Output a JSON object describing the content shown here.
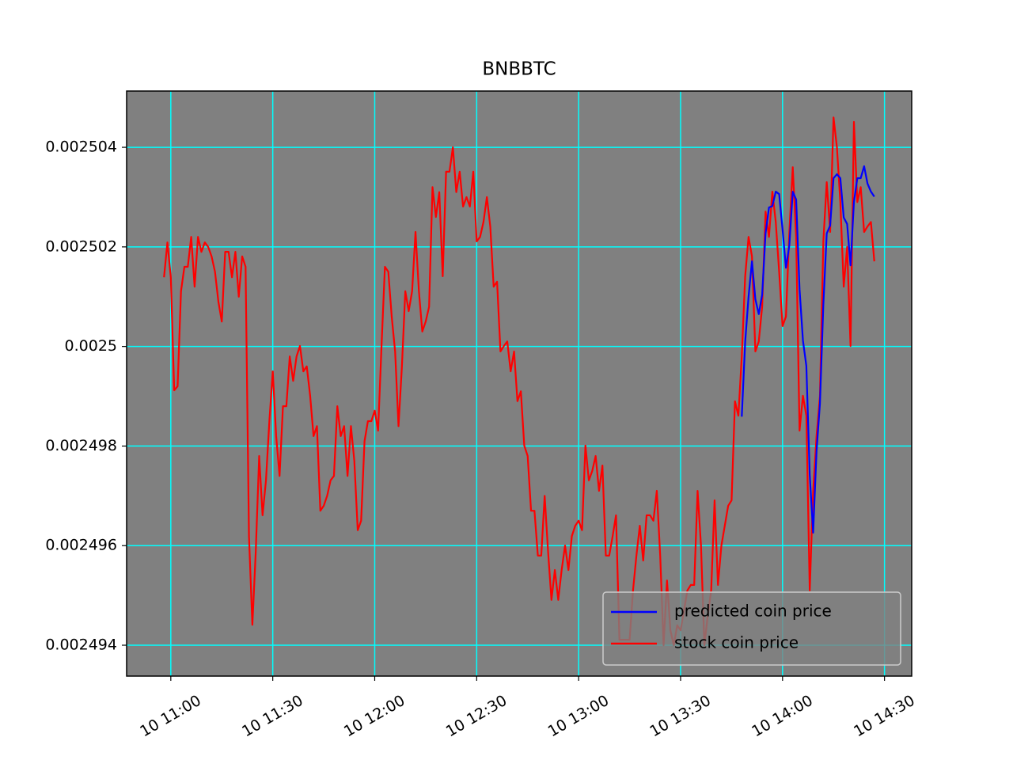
{
  "chart_data": {
    "type": "line",
    "title": "BNBBTC",
    "x": [
      "10 10:58",
      "10 10:59",
      "10 11:00",
      "10 11:01",
      "10 11:02",
      "10 11:03",
      "10 11:04",
      "10 11:05",
      "10 11:06",
      "10 11:07",
      "10 11:08",
      "10 11:09",
      "10 11:10",
      "10 11:11",
      "10 11:12",
      "10 11:13",
      "10 11:14",
      "10 11:15",
      "10 11:16",
      "10 11:17",
      "10 11:18",
      "10 11:19",
      "10 11:20",
      "10 11:21",
      "10 11:22",
      "10 11:23",
      "10 11:24",
      "10 11:25",
      "10 11:26",
      "10 11:27",
      "10 11:28",
      "10 11:29",
      "10 11:30",
      "10 11:31",
      "10 11:32",
      "10 11:33",
      "10 11:34",
      "10 11:35",
      "10 11:36",
      "10 11:37",
      "10 11:38",
      "10 11:39",
      "10 11:40",
      "10 11:41",
      "10 11:42",
      "10 11:43",
      "10 11:44",
      "10 11:45",
      "10 11:46",
      "10 11:47",
      "10 11:48",
      "10 11:49",
      "10 11:50",
      "10 11:51",
      "10 11:52",
      "10 11:53",
      "10 11:54",
      "10 11:55",
      "10 11:56",
      "10 11:57",
      "10 11:58",
      "10 11:59",
      "10 12:00",
      "10 12:01",
      "10 12:02",
      "10 12:03",
      "10 12:04",
      "10 12:05",
      "10 12:06",
      "10 12:07",
      "10 12:08",
      "10 12:09",
      "10 12:10",
      "10 12:11",
      "10 12:12",
      "10 12:13",
      "10 12:14",
      "10 12:15",
      "10 12:16",
      "10 12:17",
      "10 12:18",
      "10 12:19",
      "10 12:20",
      "10 12:21",
      "10 12:22",
      "10 12:23",
      "10 12:24",
      "10 12:25",
      "10 12:26",
      "10 12:27",
      "10 12:28",
      "10 12:29",
      "10 12:30",
      "10 12:31",
      "10 12:32",
      "10 12:33",
      "10 12:34",
      "10 12:35",
      "10 12:36",
      "10 12:37",
      "10 12:38",
      "10 12:39",
      "10 12:40",
      "10 12:41",
      "10 12:42",
      "10 12:43",
      "10 12:44",
      "10 12:45",
      "10 12:46",
      "10 12:47",
      "10 12:48",
      "10 12:49",
      "10 12:50",
      "10 12:51",
      "10 12:52",
      "10 12:53",
      "10 12:54",
      "10 12:55",
      "10 12:56",
      "10 12:57",
      "10 12:58",
      "10 12:59",
      "10 13:00",
      "10 13:01",
      "10 13:02",
      "10 13:03",
      "10 13:04",
      "10 13:05",
      "10 13:06",
      "10 13:07",
      "10 13:08",
      "10 13:09",
      "10 13:10",
      "10 13:11",
      "10 13:12",
      "10 13:13",
      "10 13:14",
      "10 13:15",
      "10 13:16",
      "10 13:17",
      "10 13:18",
      "10 13:19",
      "10 13:20",
      "10 13:21",
      "10 13:22",
      "10 13:23",
      "10 13:24",
      "10 13:25",
      "10 13:26",
      "10 13:27",
      "10 13:28",
      "10 13:29",
      "10 13:30",
      "10 13:31",
      "10 13:32",
      "10 13:33",
      "10 13:34",
      "10 13:35",
      "10 13:36",
      "10 13:37",
      "10 13:38",
      "10 13:39",
      "10 13:40",
      "10 13:41",
      "10 13:42",
      "10 13:43",
      "10 13:44",
      "10 13:45",
      "10 13:46",
      "10 13:47",
      "10 13:48",
      "10 13:49",
      "10 13:50",
      "10 13:51",
      "10 13:52",
      "10 13:53",
      "10 13:54",
      "10 13:55",
      "10 13:56",
      "10 13:57",
      "10 13:58",
      "10 13:59",
      "10 14:00",
      "10 14:01",
      "10 14:02",
      "10 14:03",
      "10 14:04",
      "10 14:05",
      "10 14:06",
      "10 14:07",
      "10 14:08",
      "10 14:09",
      "10 14:10",
      "10 14:11",
      "10 14:12",
      "10 14:13",
      "10 14:14",
      "10 14:15",
      "10 14:16",
      "10 14:17",
      "10 14:18",
      "10 14:19",
      "10 14:20",
      "10 14:21",
      "10 14:22",
      "10 14:23",
      "10 14:24",
      "10 14:25",
      "10 14:26",
      "10 14:27"
    ],
    "series": [
      {
        "name": "predicted coin price",
        "color": "#0000ff",
        "values": [
          null,
          null,
          null,
          null,
          null,
          null,
          null,
          null,
          null,
          null,
          null,
          null,
          null,
          null,
          null,
          null,
          null,
          null,
          null,
          null,
          null,
          null,
          null,
          null,
          null,
          null,
          null,
          null,
          null,
          null,
          null,
          null,
          null,
          null,
          null,
          null,
          null,
          null,
          null,
          null,
          null,
          null,
          null,
          null,
          null,
          null,
          null,
          null,
          null,
          null,
          null,
          null,
          null,
          null,
          null,
          null,
          null,
          null,
          null,
          null,
          null,
          null,
          null,
          null,
          null,
          null,
          null,
          null,
          null,
          null,
          null,
          null,
          null,
          null,
          null,
          null,
          null,
          null,
          null,
          null,
          null,
          null,
          null,
          null,
          null,
          null,
          null,
          null,
          null,
          null,
          null,
          null,
          null,
          null,
          null,
          null,
          null,
          null,
          null,
          null,
          null,
          null,
          null,
          null,
          null,
          null,
          null,
          null,
          null,
          null,
          null,
          null,
          null,
          null,
          null,
          null,
          null,
          null,
          null,
          null,
          null,
          null,
          null,
          null,
          null,
          null,
          null,
          null,
          null,
          null,
          null,
          null,
          null,
          null,
          null,
          null,
          null,
          null,
          null,
          null,
          null,
          null,
          null,
          null,
          null,
          null,
          null,
          null,
          null,
          null,
          null,
          null,
          null,
          null,
          null,
          null,
          null,
          null,
          null,
          null,
          null,
          null,
          null,
          null,
          null,
          null,
          null,
          null,
          null,
          null,
          0.00249859,
          0.00250009,
          0.002501,
          0.00250171,
          0.00250095,
          0.00250065,
          0.00250104,
          0.00250227,
          0.00250279,
          0.00250282,
          0.00250311,
          0.00250306,
          0.00250235,
          0.00250158,
          0.00250203,
          0.00250311,
          0.00250295,
          0.00250115,
          0.00250012,
          0.00249961,
          0.00249742,
          0.00249626,
          0.0024979,
          0.00249885,
          0.00250084,
          0.00250227,
          0.00250243,
          0.00250338,
          0.00250346,
          0.00250338,
          0.00250259,
          0.00250246,
          0.00250163,
          0.0025029,
          0.00250338,
          0.00250338,
          0.00250362,
          0.00250327,
          0.00250311,
          0.00250301
        ]
      },
      {
        "name": "stock coin price",
        "color": "#ff0000",
        "values": [
          0.00250139,
          0.00250209,
          0.00250139,
          0.00249912,
          0.0024992,
          0.00250111,
          0.0025016,
          0.0025016,
          0.0025022,
          0.0025012,
          0.0025022,
          0.0025019,
          0.00250209,
          0.002502,
          0.00250181,
          0.0025015,
          0.0025009,
          0.0025005,
          0.0025019,
          0.0025019,
          0.00250139,
          0.0025019,
          0.002501,
          0.00250181,
          0.0025016,
          0.00249619,
          0.00249441,
          0.00249589,
          0.0024978,
          0.00249661,
          0.00249731,
          0.0024985,
          0.0024995,
          0.0024982,
          0.0024974,
          0.0024988,
          0.0024988,
          0.0024998,
          0.00249931,
          0.0024998,
          0.00250001,
          0.0024995,
          0.0024996,
          0.00249901,
          0.0024982,
          0.0024984,
          0.0024967,
          0.0024968,
          0.002497,
          0.00249731,
          0.0024974,
          0.0024988,
          0.0024982,
          0.0024984,
          0.0024974,
          0.0024984,
          0.0024977,
          0.00249631,
          0.0024965,
          0.0024981,
          0.0024985,
          0.0024985,
          0.00249871,
          0.00249831,
          0.00250001,
          0.0025016,
          0.0025015,
          0.0025006,
          0.0024999,
          0.0024984,
          0.0024996,
          0.00250111,
          0.00250071,
          0.00250111,
          0.0025023,
          0.00250111,
          0.0025003,
          0.0025005,
          0.0025008,
          0.0025032,
          0.0025026,
          0.0025031,
          0.00250141,
          0.00250351,
          0.00250351,
          0.002504,
          0.0025031,
          0.00250351,
          0.00250281,
          0.002503,
          0.00250281,
          0.00250351,
          0.00250211,
          0.0025022,
          0.0025025,
          0.002503,
          0.00250241,
          0.0025012,
          0.0025013,
          0.0024999,
          0.00250001,
          0.0025001,
          0.0024995,
          0.0024999,
          0.0024989,
          0.0024991,
          0.00249801,
          0.0024978,
          0.0024967,
          0.0024967,
          0.0024958,
          0.0024958,
          0.002497,
          0.00249589,
          0.00249491,
          0.00249551,
          0.00249491,
          0.00249551,
          0.002496,
          0.00249551,
          0.00249619,
          0.0024964,
          0.0024965,
          0.00249631,
          0.00249801,
          0.00249731,
          0.0024975,
          0.0024978,
          0.0024971,
          0.00249761,
          0.0024958,
          0.0024958,
          0.00249619,
          0.00249661,
          0.00249411,
          0.00249411,
          0.00249411,
          0.00249411,
          0.0024951,
          0.0024958,
          0.0024964,
          0.0024957,
          0.00249661,
          0.00249661,
          0.0024965,
          0.0024971,
          0.0024958,
          0.002494,
          0.0024953,
          0.0024943,
          0.002494,
          0.0024944,
          0.0024943,
          0.0024947,
          0.0024951,
          0.00249521,
          0.00249521,
          0.0024971,
          0.002496,
          0.002494,
          0.0024946,
          0.0024951,
          0.00249691,
          0.00249521,
          0.002496,
          0.0024964,
          0.0024968,
          0.00249691,
          0.0024989,
          0.00249861,
          0.0024998,
          0.00250141,
          0.0025022,
          0.00250181,
          0.0024999,
          0.0025001,
          0.0025008,
          0.00250271,
          0.0025022,
          0.00250311,
          0.0025025,
          0.0025015,
          0.00250041,
          0.0025006,
          0.0025023,
          0.0025036,
          0.0025022,
          0.00249831,
          0.00249901,
          0.00249861,
          0.0024951,
          0.0024971,
          0.0024982,
          0.00249901,
          0.00250211,
          0.0025033,
          0.0025023,
          0.0025046,
          0.002504,
          0.0025029,
          0.0025012,
          0.002502,
          0.00250001,
          0.00250451,
          0.0025029,
          0.0025032,
          0.0025023,
          0.00250241,
          0.0025025,
          0.00250171
        ]
      }
    ],
    "xlim": [
      "10 10:47",
      "10 14:38"
    ],
    "xticks": [
      "10 11:00",
      "10 11:30",
      "10 12:00",
      "10 12:30",
      "10 13:00",
      "10 13:30",
      "10 14:00",
      "10 14:30"
    ],
    "ylim": [
      0.00249338,
      0.00250513
    ],
    "yticks": [
      0.002494,
      0.002496,
      0.002498,
      0.0025,
      0.002502,
      0.002504
    ],
    "grid": true,
    "grid_color": "#00ffff",
    "plot_background": "#808080",
    "legend": "lower right"
  }
}
